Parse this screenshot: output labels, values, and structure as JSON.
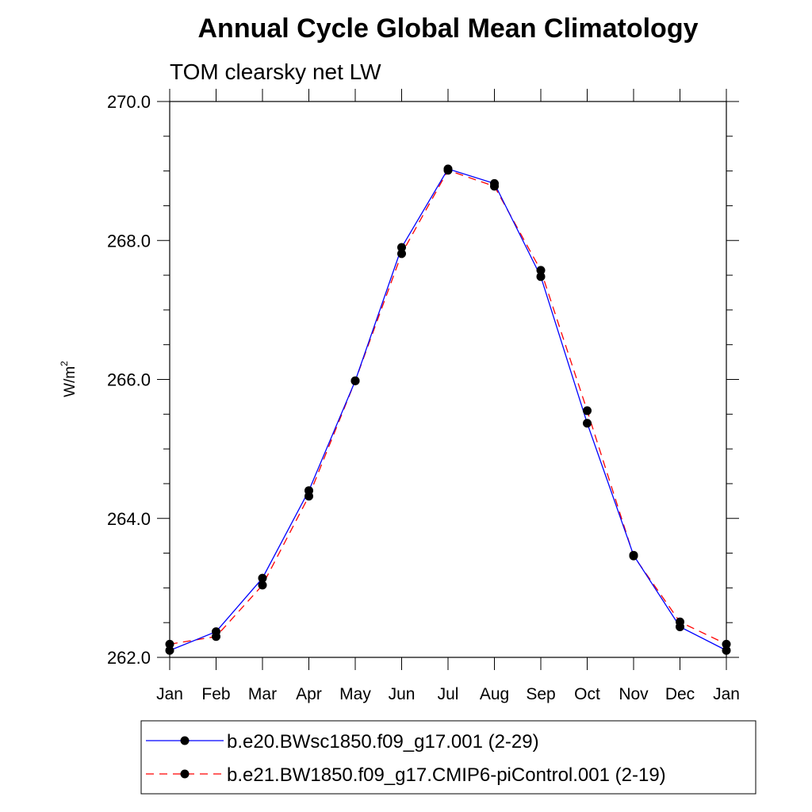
{
  "chart_data": {
    "type": "line",
    "title": "Annual Cycle Global Mean Climatology",
    "subtitle": "TOM clearsky net LW",
    "ylabel": "W/m",
    "ylabel_superscript": "2",
    "ylim": [
      262.0,
      270.0
    ],
    "yticks": [
      "262.0",
      "264.0",
      "266.0",
      "268.0",
      "270.0"
    ],
    "categories": [
      "Jan",
      "Feb",
      "Mar",
      "Apr",
      "May",
      "Jun",
      "Jul",
      "Aug",
      "Sep",
      "Oct",
      "Nov",
      "Dec",
      "Jan"
    ],
    "grid": false,
    "legend_position": "bottom",
    "series": [
      {
        "name": "b.e20.BWsc1850.f09_g17.001 (2-29)",
        "color": "#0000ff",
        "line_style": "solid",
        "marker": "filled-circle",
        "values": [
          262.1,
          262.37,
          263.14,
          264.4,
          265.98,
          267.9,
          269.03,
          268.82,
          267.48,
          265.37,
          263.47,
          262.44,
          262.1
        ]
      },
      {
        "name": "b.e21.BW1850.f09_g17.CMIP6-piControl.001 (2-19)",
        "color": "#ff0000",
        "line_style": "dashed",
        "marker": "filled-circle",
        "values": [
          262.19,
          262.3,
          263.04,
          264.32,
          265.98,
          267.81,
          269.01,
          268.78,
          267.57,
          265.55,
          263.46,
          262.51,
          262.19
        ]
      }
    ]
  }
}
